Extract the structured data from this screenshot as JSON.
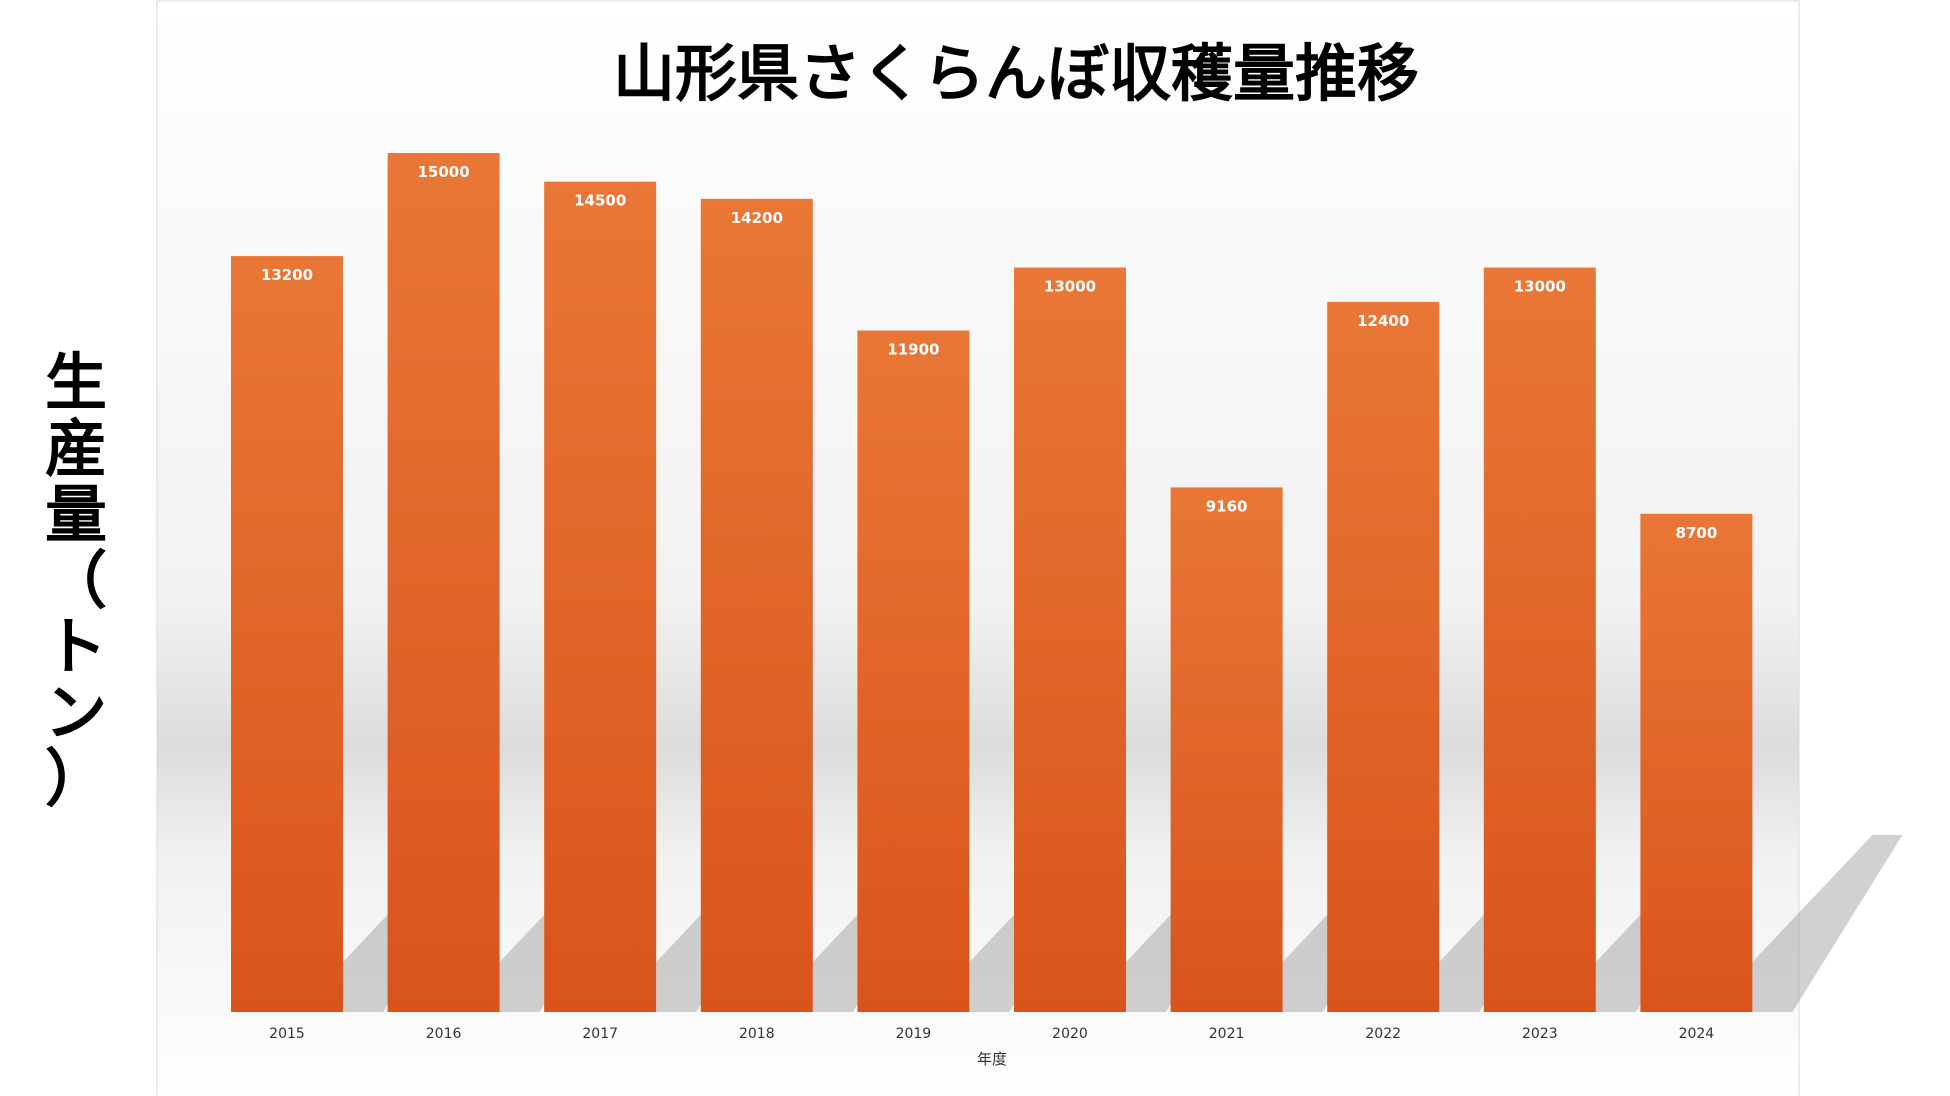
{
  "chart_data": {
    "type": "bar",
    "title": "山形県さくらんぼ収穫量推移",
    "xlabel": "年度",
    "ylabel": "生産量（トン）",
    "categories": [
      "2015",
      "2016",
      "2017",
      "2018",
      "2019",
      "2020",
      "2021",
      "2022",
      "2023",
      "2024"
    ],
    "series": [
      {
        "values": [
          13200,
          15000,
          14500,
          14200,
          11900,
          13000,
          9160,
          12400,
          13000,
          8700
        ]
      }
    ],
    "ylim": [
      0,
      15000
    ],
    "grid": false,
    "data_labels": true,
    "colors": {
      "bar_top": "#e97736",
      "bar_bottom": "#d9541b",
      "label": "#ffffff"
    }
  }
}
